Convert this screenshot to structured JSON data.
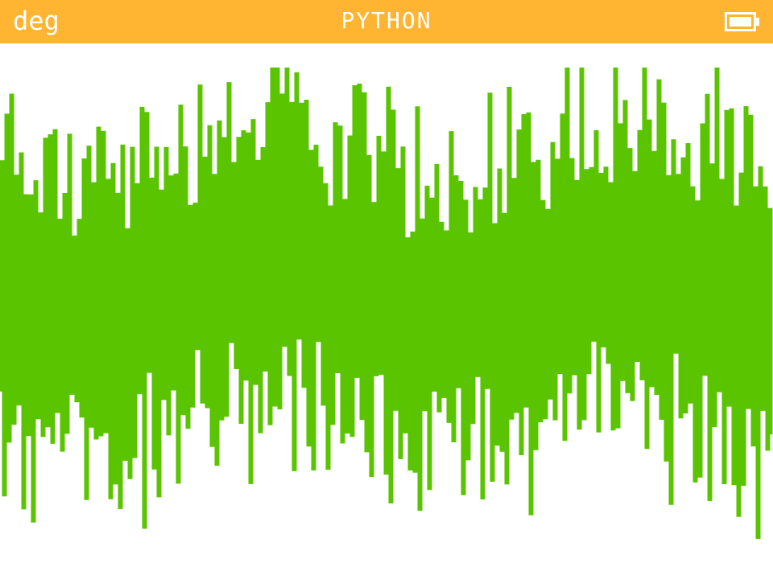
{
  "theme": {
    "titlebar_color": "#ffb531",
    "title_text_color": "#ffffff",
    "background": "#ffffff",
    "plot_color": "#5ac400"
  },
  "titlebar": {
    "angle_mode": "deg",
    "title": "PYTHON",
    "battery_icon": "battery-full-icon",
    "battery_level": 1.0
  },
  "output": {
    "description_type": "vertical-line-pattern",
    "line_count": 320
  }
}
